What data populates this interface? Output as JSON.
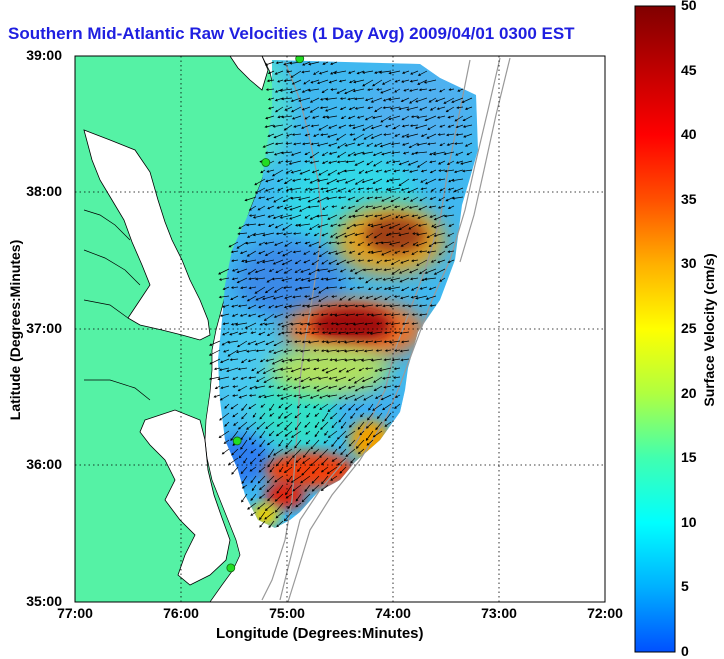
{
  "title": "Southern Mid-Atlantic Raw Velocities (1 Day Avg) 2009/04/01 0300 EST",
  "xlabel": "Longitude (Degrees:Minutes)",
  "ylabel": "Latitude (Degrees:Minutes)",
  "colorbar": {
    "label": "Surface Velocity (cm/s)",
    "ticks": [
      "0",
      "5",
      "10",
      "15",
      "20",
      "25",
      "30",
      "35",
      "40",
      "45",
      "50"
    ],
    "range": [
      0,
      50
    ],
    "colors": [
      "#0050ff",
      "#00b0ff",
      "#00ffff",
      "#40ffb0",
      "#b0ff40",
      "#ffff00",
      "#ffb000",
      "#ff5000",
      "#ff0000",
      "#c00000",
      "#800000"
    ]
  },
  "axes": {
    "x_ticks": [
      "77:00",
      "76:00",
      "75:00",
      "74:00",
      "73:00",
      "72:00"
    ],
    "y_ticks": [
      "39:00",
      "38:00",
      "37:00",
      "36:00",
      "35:00"
    ]
  },
  "colors": {
    "land": "#55f2a5",
    "coast": "#000000",
    "bathymetry": "#999999",
    "grid": "#000000",
    "station": "#22dd22"
  },
  "chart_data": {
    "type": "heatmap",
    "x_range": [
      -77,
      -72
    ],
    "y_range": [
      35,
      39
    ],
    "value_range": [
      0,
      50
    ],
    "hotspots": [
      {
        "lon": -74.6,
        "lat": 37.0,
        "speed": 48
      },
      {
        "lon": -74.2,
        "lat": 37.6,
        "speed": 38
      },
      {
        "lon": -75.0,
        "lat": 35.8,
        "speed": 42
      },
      {
        "lon": -74.6,
        "lat": 36.1,
        "speed": 30
      }
    ],
    "stations": [
      {
        "lon": -74.88,
        "lat": 38.98
      },
      {
        "lon": -75.2,
        "lat": 38.22
      },
      {
        "lon": -75.47,
        "lat": 36.18
      },
      {
        "lon": -75.53,
        "lat": 35.25
      }
    ]
  }
}
